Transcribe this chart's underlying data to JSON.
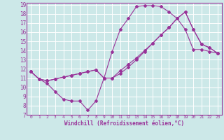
{
  "xlabel": "Windchill (Refroidissement éolien,°C)",
  "bg_color": "#cce8e8",
  "grid_color": "#ffffff",
  "line_color": "#993399",
  "xlim": [
    -0.5,
    23.5
  ],
  "ylim": [
    7,
    19.2
  ],
  "xticks": [
    0,
    1,
    2,
    3,
    4,
    5,
    6,
    7,
    8,
    9,
    10,
    11,
    12,
    13,
    14,
    15,
    16,
    17,
    18,
    19,
    20,
    21,
    22,
    23
  ],
  "yticks": [
    7,
    8,
    9,
    10,
    11,
    12,
    13,
    14,
    15,
    16,
    17,
    18,
    19
  ],
  "line1_x": [
    0,
    1,
    2,
    3,
    4,
    5,
    6,
    7,
    8,
    9,
    10,
    11,
    12,
    13,
    14,
    15,
    16,
    17,
    18,
    19,
    20,
    21,
    22,
    23
  ],
  "line1_y": [
    11.7,
    10.9,
    10.4,
    9.5,
    8.7,
    8.5,
    8.5,
    7.5,
    8.5,
    11.0,
    13.9,
    16.3,
    17.5,
    18.8,
    18.9,
    18.9,
    18.8,
    18.2,
    17.5,
    16.3,
    14.1,
    14.1,
    13.9,
    13.7
  ],
  "line2_x": [
    0,
    1,
    2,
    3,
    4,
    5,
    6,
    7,
    8,
    9,
    10,
    11,
    12,
    13,
    14,
    15,
    16,
    17,
    18,
    19,
    20,
    21,
    22,
    23
  ],
  "line2_y": [
    11.7,
    10.9,
    10.7,
    10.9,
    11.1,
    11.3,
    11.5,
    11.7,
    11.9,
    11.0,
    11.0,
    11.5,
    12.2,
    13.0,
    13.9,
    14.8,
    15.7,
    16.5,
    17.5,
    18.2,
    16.3,
    14.7,
    14.3,
    13.7
  ],
  "line3_x": [
    0,
    1,
    2,
    3,
    4,
    5,
    6,
    7,
    8,
    9,
    10,
    11,
    12,
    13,
    14,
    15,
    16,
    17,
    18,
    19,
    20,
    21,
    22,
    23
  ],
  "line3_y": [
    11.7,
    10.9,
    10.7,
    10.9,
    11.1,
    11.3,
    11.5,
    11.7,
    11.9,
    11.0,
    11.0,
    11.8,
    12.5,
    13.2,
    14.0,
    14.8,
    15.7,
    16.5,
    17.5,
    18.2,
    16.3,
    14.7,
    14.3,
    13.7
  ]
}
